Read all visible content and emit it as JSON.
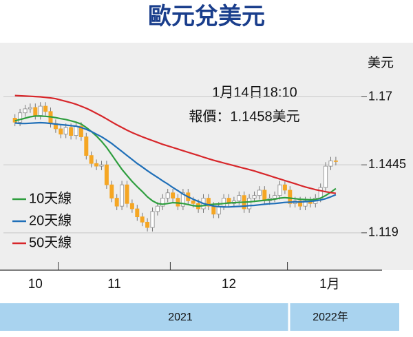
{
  "chart_data": {
    "type": "candlestick",
    "title": "歐元兌美元",
    "y_label": "美元",
    "annotations": [
      "1月14日18:10",
      "報價：1.1458美元"
    ],
    "years": [
      "2021",
      "2022年"
    ],
    "categories": [
      "10",
      null,
      null,
      null,
      null,
      null,
      null,
      null,
      null,
      "11",
      null,
      null,
      null,
      null,
      null,
      null,
      null,
      null,
      null,
      null,
      null,
      null,
      null,
      null,
      null,
      null,
      null,
      null,
      null,
      null,
      null,
      "12",
      null,
      null,
      null,
      null,
      null,
      null,
      null,
      null,
      null,
      null,
      null,
      null,
      null,
      null,
      null,
      null,
      null,
      null,
      null,
      null,
      null,
      null,
      "1月",
      null,
      null,
      null,
      null,
      null,
      null,
      null,
      null,
      null
    ],
    "open": [
      1.162,
      1.1605,
      1.164,
      1.1655,
      1.166,
      1.163,
      1.1665,
      1.1645,
      1.16,
      1.158,
      1.156,
      1.1585,
      1.1555,
      1.159,
      1.155,
      1.148,
      1.145,
      1.144,
      1.1445,
      1.137,
      1.132,
      1.129,
      1.137,
      1.13,
      1.128,
      1.125,
      1.123,
      1.121,
      1.127,
      1.129,
      1.132,
      1.134,
      1.132,
      1.129,
      1.134,
      1.131,
      1.13,
      1.128,
      1.132,
      1.129,
      1.126,
      1.129,
      1.132,
      1.13,
      1.131,
      1.133,
      1.128,
      1.132,
      1.133,
      1.135,
      1.131,
      1.132,
      1.133,
      1.137,
      1.135,
      1.13,
      1.131,
      1.129,
      1.131,
      1.13,
      1.132,
      1.136,
      1.144,
      1.146
    ],
    "close": [
      1.1605,
      1.164,
      1.1655,
      1.166,
      1.163,
      1.1665,
      1.1645,
      1.16,
      1.158,
      1.156,
      1.1585,
      1.1555,
      1.159,
      1.155,
      1.148,
      1.145,
      1.144,
      1.1445,
      1.137,
      1.132,
      1.129,
      1.137,
      1.13,
      1.128,
      1.125,
      1.123,
      1.121,
      1.127,
      1.129,
      1.132,
      1.134,
      1.132,
      1.129,
      1.134,
      1.131,
      1.13,
      1.128,
      1.132,
      1.129,
      1.126,
      1.129,
      1.132,
      1.13,
      1.131,
      1.133,
      1.128,
      1.132,
      1.133,
      1.135,
      1.131,
      1.132,
      1.133,
      1.137,
      1.135,
      1.13,
      1.131,
      1.129,
      1.131,
      1.13,
      1.132,
      1.136,
      1.144,
      1.146,
      1.1458
    ],
    "high": [
      1.1635,
      1.1655,
      1.167,
      1.1675,
      1.1675,
      1.168,
      1.168,
      1.166,
      1.1615,
      1.1595,
      1.16,
      1.16,
      1.1605,
      1.1605,
      1.1565,
      1.1495,
      1.1465,
      1.146,
      1.146,
      1.1385,
      1.1335,
      1.1385,
      1.1385,
      1.1315,
      1.1295,
      1.1265,
      1.1245,
      1.1285,
      1.1305,
      1.1335,
      1.1355,
      1.1355,
      1.1335,
      1.1355,
      1.1355,
      1.1325,
      1.1315,
      1.1335,
      1.1335,
      1.1305,
      1.1305,
      1.1335,
      1.1335,
      1.1325,
      1.1345,
      1.1345,
      1.1335,
      1.1345,
      1.1365,
      1.1365,
      1.1335,
      1.1345,
      1.1385,
      1.1385,
      1.1365,
      1.1325,
      1.1325,
      1.1325,
      1.1325,
      1.1335,
      1.1375,
      1.1455,
      1.1475,
      1.1475
    ],
    "low": [
      1.159,
      1.159,
      1.1625,
      1.164,
      1.1615,
      1.1615,
      1.163,
      1.1585,
      1.1565,
      1.1545,
      1.1545,
      1.154,
      1.154,
      1.1535,
      1.1465,
      1.1435,
      1.1425,
      1.1425,
      1.1355,
      1.1305,
      1.1275,
      1.1275,
      1.1285,
      1.1265,
      1.1235,
      1.1215,
      1.1195,
      1.1195,
      1.1255,
      1.1275,
      1.1305,
      1.1305,
      1.1275,
      1.1275,
      1.1295,
      1.1285,
      1.1265,
      1.1265,
      1.1275,
      1.1245,
      1.1245,
      1.1275,
      1.1285,
      1.1285,
      1.1295,
      1.1265,
      1.1265,
      1.1305,
      1.1315,
      1.1295,
      1.1295,
      1.1305,
      1.1315,
      1.1335,
      1.1285,
      1.1285,
      1.1275,
      1.1275,
      1.1285,
      1.1285,
      1.1305,
      1.1345,
      1.1425,
      1.1443
    ],
    "up_color": "#ffffff",
    "down_color": "#f5a623",
    "series": [
      {
        "name": "10天線",
        "color": "#2e9e3e",
        "values": [
          1.161,
          1.1615,
          1.162,
          1.1625,
          1.1628,
          1.1628,
          1.1627,
          1.1625,
          1.1622,
          1.1618,
          1.1615,
          1.161,
          1.1605,
          1.1598,
          1.1585,
          1.157,
          1.1553,
          1.1533,
          1.151,
          1.1483,
          1.1455,
          1.1428,
          1.1405,
          1.1383,
          1.1363,
          1.1345,
          1.1325,
          1.131,
          1.13,
          1.1297,
          1.13,
          1.1303,
          1.1302,
          1.13,
          1.1296,
          1.1292,
          1.129,
          1.1292,
          1.1295,
          1.1297,
          1.1298,
          1.13,
          1.1302,
          1.1303,
          1.1304,
          1.1305,
          1.1306,
          1.1308,
          1.131,
          1.1312,
          1.1314,
          1.1316,
          1.132,
          1.1322,
          1.132,
          1.1318,
          1.1316,
          1.1315,
          1.1314,
          1.1315,
          1.132,
          1.133,
          1.1342,
          1.1356
        ]
      },
      {
        "name": "20天線",
        "color": "#1f6fb8",
        "values": [
          1.1602,
          1.16,
          1.16,
          1.1601,
          1.1602,
          1.1603,
          1.1602,
          1.16,
          1.1598,
          1.1596,
          1.1594,
          1.1592,
          1.159,
          1.1585,
          1.1578,
          1.157,
          1.156,
          1.155,
          1.1538,
          1.1525,
          1.151,
          1.1495,
          1.148,
          1.1465,
          1.145,
          1.1437,
          1.1423,
          1.141,
          1.1398,
          1.1385,
          1.1373,
          1.136,
          1.1348,
          1.1335,
          1.1325,
          1.1316,
          1.1308,
          1.13,
          1.1295,
          1.129,
          1.1288,
          1.1287,
          1.1287,
          1.1288,
          1.1289,
          1.129,
          1.1292,
          1.1293,
          1.1295,
          1.1297,
          1.1299,
          1.13,
          1.1302,
          1.1304,
          1.1305,
          1.1306,
          1.1306,
          1.1307,
          1.1308,
          1.131,
          1.1313,
          1.1318,
          1.1325,
          1.1333
        ]
      },
      {
        "name": "50天線",
        "color": "#d7262a",
        "values": [
          1.1705,
          1.1704,
          1.1703,
          1.1702,
          1.1701,
          1.17,
          1.1698,
          1.1696,
          1.1693,
          1.1688,
          1.1683,
          1.1678,
          1.1672,
          1.1665,
          1.1657,
          1.1648,
          1.1638,
          1.1628,
          1.1617,
          1.1606,
          1.1595,
          1.1585,
          1.1575,
          1.1566,
          1.1558,
          1.155,
          1.1543,
          1.1536,
          1.1529,
          1.1522,
          1.1516,
          1.151,
          1.1504,
          1.1498,
          1.1492,
          1.1486,
          1.148,
          1.1474,
          1.1468,
          1.1462,
          1.1457,
          1.1452,
          1.1447,
          1.1442,
          1.1437,
          1.1432,
          1.1427,
          1.1422,
          1.1416,
          1.141,
          1.1404,
          1.1398,
          1.1392,
          1.1386,
          1.138,
          1.1374,
          1.1368,
          1.1362,
          1.1357,
          1.1352,
          1.1348,
          1.1344,
          1.1341,
          1.1338
        ]
      }
    ],
    "ylim": [
      1.105,
      1.189
    ],
    "yticks": [
      1.119,
      1.1445,
      1.17
    ],
    "grid": true,
    "legend": "left"
  }
}
